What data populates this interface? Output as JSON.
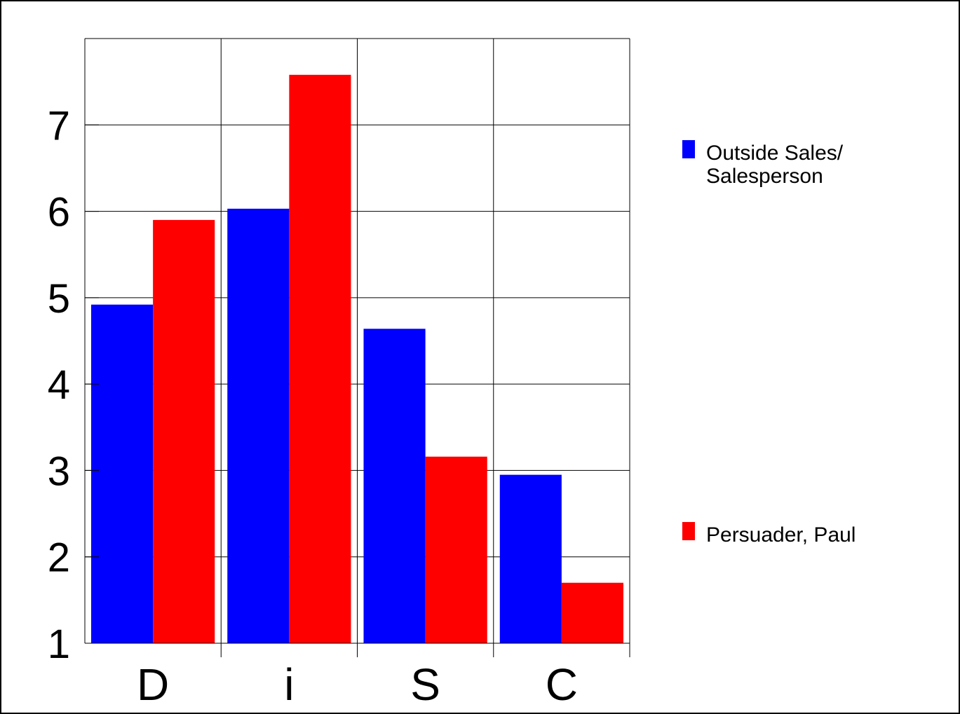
{
  "chart_data": {
    "type": "bar",
    "categories": [
      "D",
      "i",
      "S",
      "C"
    ],
    "series": [
      {
        "name": "Outside Sales/ Salesperson",
        "legend_lines": [
          "Outside Sales/",
          "Salesperson"
        ],
        "color": "#0000ff",
        "values": [
          4.92,
          6.03,
          4.64,
          2.95
        ]
      },
      {
        "name": "Persuader, Paul",
        "legend_lines": [
          "Persuader, Paul"
        ],
        "color": "#ff0000",
        "values": [
          5.9,
          7.58,
          3.16,
          1.7
        ]
      }
    ],
    "ylim": [
      1,
      8
    ],
    "yticks": [
      1,
      2,
      3,
      4,
      5,
      6,
      7
    ],
    "grid": true,
    "legend_position": "right",
    "title": "",
    "xlabel": "",
    "ylabel": ""
  }
}
